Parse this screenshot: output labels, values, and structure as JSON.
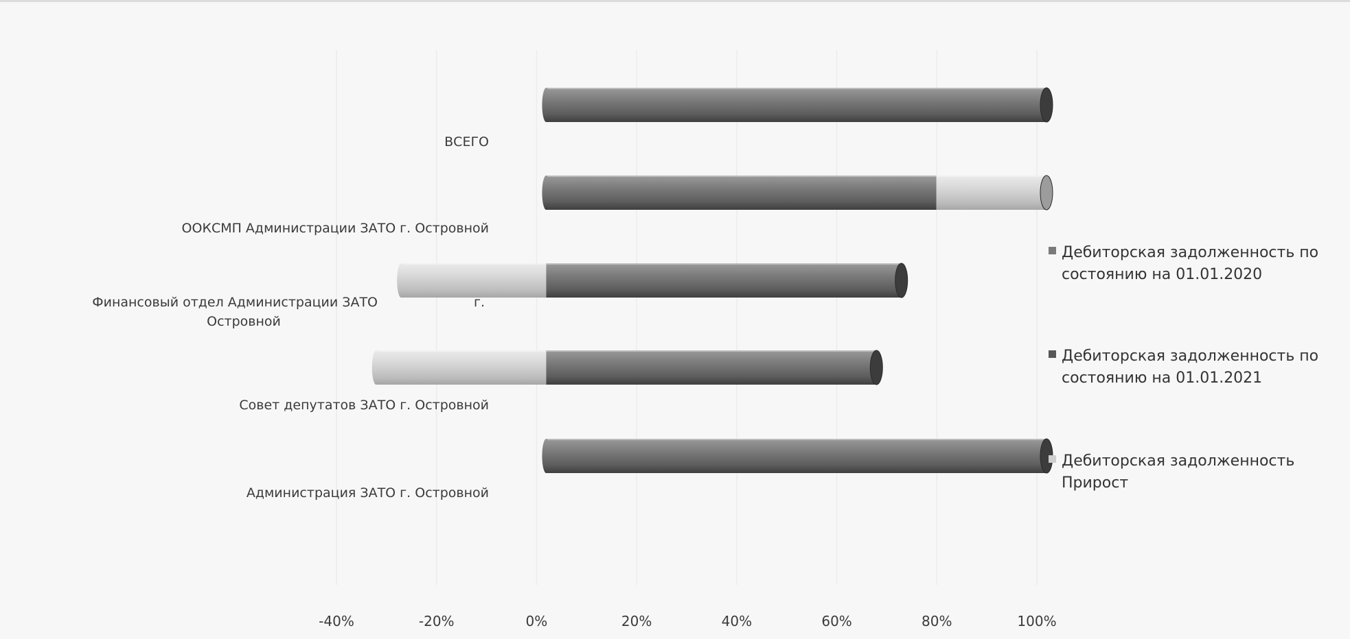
{
  "chart_data": {
    "type": "bar",
    "orientation": "horizontal",
    "stacked": "percent",
    "categories": [
      "ВСЕГО",
      "ООКСМП Администрации ЗАТО г. Островной",
      "Финансовый отдел Администрации ЗАТО г. Островной",
      "Совет депутатов ЗАТО г. Островной",
      "Администрация ЗАТО г. Островной"
    ],
    "series": [
      {
        "name": "Дебиторская задолженность по состоянию на 01.01.2020",
        "color": "#8c8c8c",
        "values": [
          0,
          0,
          0,
          0,
          0
        ]
      },
      {
        "name": "Дебиторская задолженность по состоянию на 01.01.2021",
        "color": "#6e6e6e",
        "values": [
          100,
          78,
          71,
          66,
          100
        ]
      },
      {
        "name": "Дебиторская задолженность Прирост",
        "color": "#d4d4d4",
        "values": [
          0,
          22,
          -29,
          -34,
          0
        ]
      }
    ],
    "xlim": [
      -40,
      100
    ],
    "xticks": [
      "-40%",
      "-20%",
      "0%",
      "20%",
      "40%",
      "60%",
      "80%",
      "100%"
    ],
    "legend_position": "right",
    "grid": true
  }
}
